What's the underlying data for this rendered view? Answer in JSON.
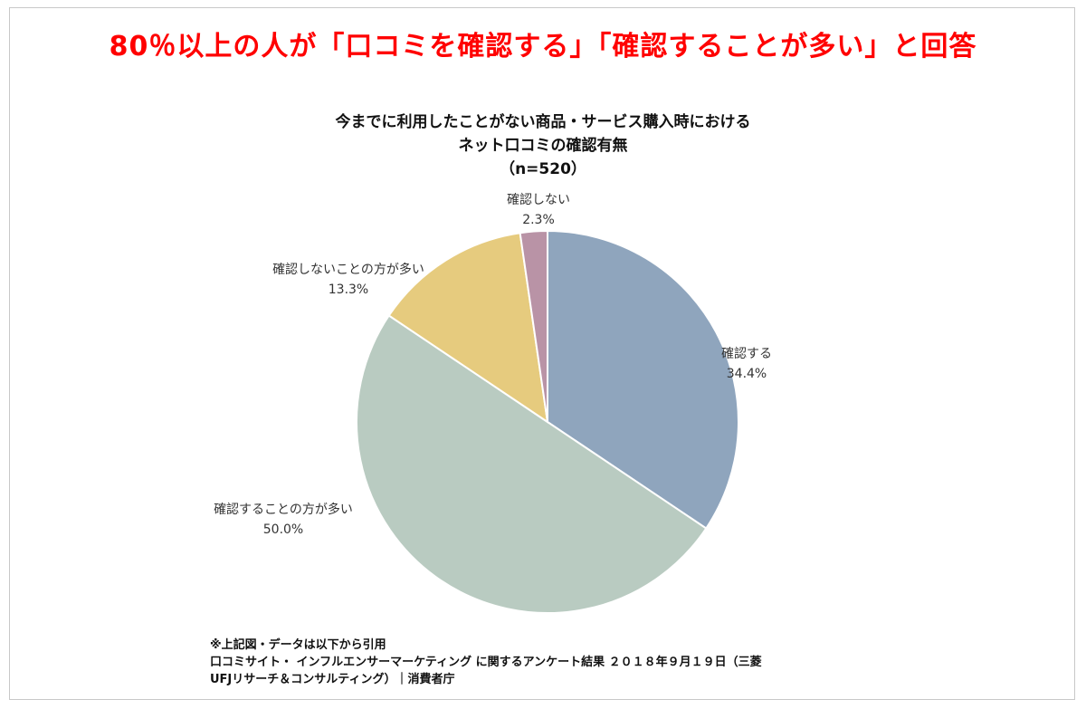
{
  "headline": "80％以上の人が「口コミを確認する」「確認することが多い」と回答",
  "chart_data": {
    "type": "pie",
    "title": [
      "今までに利用したことがない商品・サービス購入時における",
      "ネット口コミの確認有無",
      "（n=520）"
    ],
    "categories": [
      "確認する",
      "確認することの方が多い",
      "確認しないことの方が多い",
      "確認しない"
    ],
    "values": [
      34.4,
      50.0,
      13.3,
      2.3
    ],
    "value_labels": [
      "34.4%",
      "50.0%",
      "13.3%",
      "2.3%"
    ],
    "colors": [
      "#8fa5bd",
      "#b9cbc1",
      "#e6cb7e",
      "#b993a6"
    ],
    "legend": "none",
    "start": "12 o'clock, clockwise"
  },
  "source": {
    "line1": "※上記図・データは以下から引用",
    "line2": "口コミサイト・ インフルエンサーマーケティング に関するアンケート結果 ２０１８年９月１９日（三菱",
    "line3": "UFJリサーチ＆コンサルティング）｜消費者庁"
  }
}
